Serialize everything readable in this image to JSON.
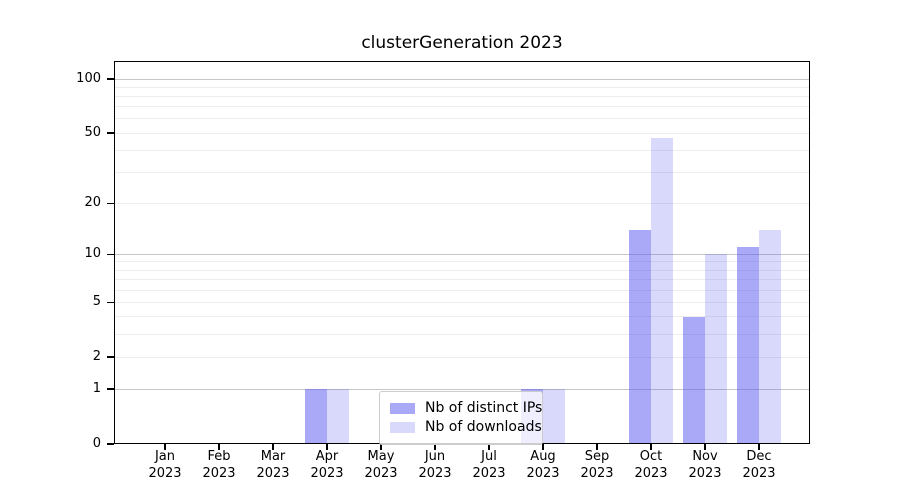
{
  "title": "clusterGeneration 2023",
  "chart_data": {
    "type": "bar",
    "title": "clusterGeneration 2023",
    "categories": [
      "Jan",
      "Feb",
      "Mar",
      "Apr",
      "May",
      "Jun",
      "Jul",
      "Aug",
      "Sep",
      "Oct",
      "Nov",
      "Dec"
    ],
    "x_tick_second_line": "2023",
    "series": [
      {
        "name": "Nb of distinct IPs",
        "color": "rgba(90,90,240,0.52)",
        "values": [
          0,
          0,
          0,
          1,
          0,
          0,
          0,
          1,
          0,
          14,
          4,
          11
        ]
      },
      {
        "name": "Nb of downloads",
        "color": "rgba(90,90,240,0.23)",
        "values": [
          0,
          0,
          0,
          1,
          0,
          0,
          0,
          1,
          0,
          47,
          10,
          14
        ]
      }
    ],
    "xlabel": "",
    "ylabel": "",
    "y_axis": {
      "scale": "symlog",
      "tick_values": [
        0,
        1,
        2,
        5,
        10,
        20,
        50,
        100
      ],
      "tick_labels": [
        "0",
        "1",
        "2",
        "5",
        "10",
        "20",
        "50",
        "100"
      ],
      "range": [
        0,
        128
      ]
    },
    "grid": {
      "orientation": "horizontal",
      "major_values": [
        1,
        10,
        100
      ],
      "minor_values": [
        2,
        3,
        4,
        5,
        6,
        7,
        8,
        9,
        20,
        30,
        40,
        50,
        60,
        70,
        80,
        90
      ],
      "major_color": "#c6c6c6",
      "minor_color": "#ededed"
    },
    "legend_position": "inside-bottom-center"
  }
}
